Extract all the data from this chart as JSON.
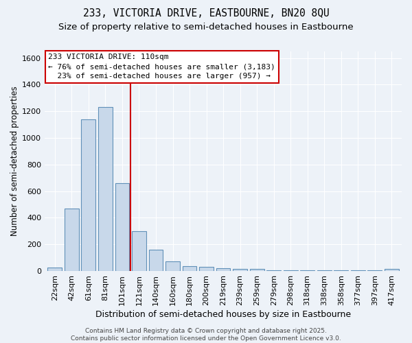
{
  "title1": "233, VICTORIA DRIVE, EASTBOURNE, BN20 8QU",
  "title2": "Size of property relative to semi-detached houses in Eastbourne",
  "xlabel": "Distribution of semi-detached houses by size in Eastbourne",
  "ylabel": "Number of semi-detached properties",
  "categories": [
    "22sqm",
    "42sqm",
    "61sqm",
    "81sqm",
    "101sqm",
    "121sqm",
    "140sqm",
    "160sqm",
    "180sqm",
    "200sqm",
    "219sqm",
    "239sqm",
    "259sqm",
    "279sqm",
    "298sqm",
    "318sqm",
    "338sqm",
    "358sqm",
    "377sqm",
    "397sqm",
    "417sqm"
  ],
  "values": [
    25,
    470,
    1140,
    1230,
    660,
    300,
    160,
    75,
    35,
    30,
    20,
    15,
    15,
    5,
    5,
    5,
    3,
    3,
    3,
    3,
    15
  ],
  "bar_color": "#c8d8ea",
  "bar_edge_color": "#6090b8",
  "red_line_x": 4.5,
  "red_line_label": "233 VICTORIA DRIVE: 110sqm",
  "pct_smaller": "76% of semi-detached houses are smaller (3,183)",
  "pct_larger": "23% of semi-detached houses are larger (957)",
  "annotation_box_color": "#ffffff",
  "annotation_box_edge": "#cc0000",
  "footnote": "Contains HM Land Registry data © Crown copyright and database right 2025.\nContains public sector information licensed under the Open Government Licence v3.0.",
  "ylim": [
    0,
    1650
  ],
  "yticks": [
    0,
    200,
    400,
    600,
    800,
    1000,
    1200,
    1400,
    1600
  ],
  "bg_color": "#edf2f8",
  "grid_color": "#ffffff",
  "title1_fontsize": 10.5,
  "title2_fontsize": 9.5,
  "xlabel_fontsize": 9,
  "ylabel_fontsize": 8.5,
  "tick_fontsize": 8,
  "footnote_fontsize": 6.5
}
